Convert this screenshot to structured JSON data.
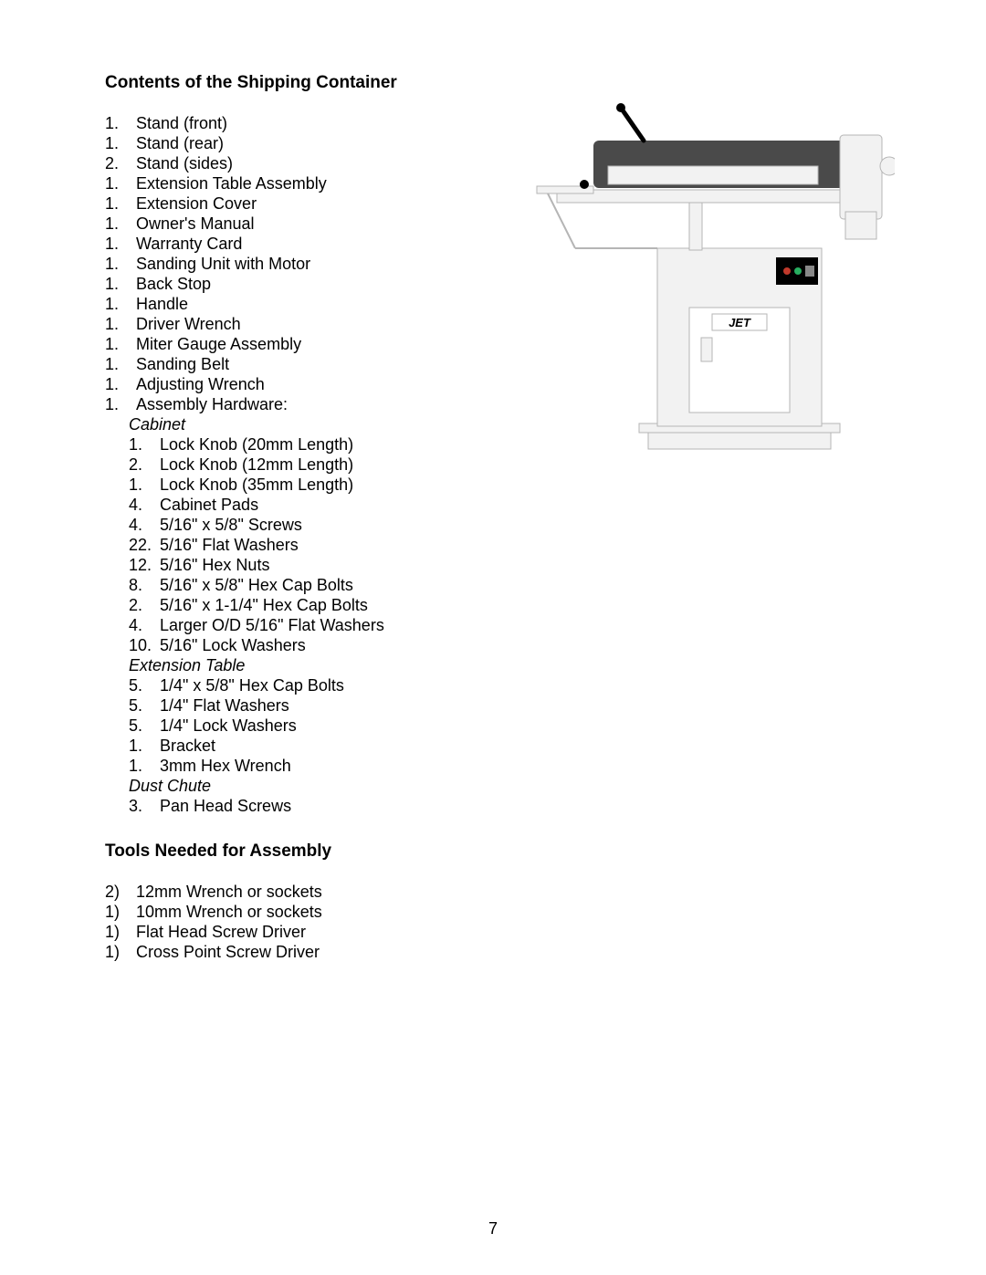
{
  "headings": {
    "contents": "Contents of the Shipping Container",
    "tools": "Tools Needed for Assembly"
  },
  "main_list": [
    {
      "n": "1.",
      "t": "Stand (front)"
    },
    {
      "n": "1.",
      "t": "Stand (rear)"
    },
    {
      "n": "2.",
      "t": "Stand (sides)"
    },
    {
      "n": "1.",
      "t": "Extension Table Assembly"
    },
    {
      "n": "1.",
      "t": "Extension Cover"
    },
    {
      "n": "1.",
      "t": "Owner's Manual"
    },
    {
      "n": "1.",
      "t": "Warranty Card"
    },
    {
      "n": "1.",
      "t": "Sanding Unit with Motor"
    },
    {
      "n": "1.",
      "t": "Back Stop"
    },
    {
      "n": "1.",
      "t": "Handle"
    },
    {
      "n": "1.",
      "t": "Driver Wrench"
    },
    {
      "n": "1.",
      "t": "Miter Gauge Assembly"
    },
    {
      "n": "1.",
      "t": "Sanding Belt"
    },
    {
      "n": "1.",
      "t": "Adjusting Wrench"
    },
    {
      "n": "1.",
      "t": "Assembly Hardware:"
    }
  ],
  "sub_headings": {
    "cabinet": "Cabinet",
    "ext_table": "Extension Table",
    "dust_chute": "Dust Chute"
  },
  "cabinet_list": [
    {
      "n": "1.",
      "t": "Lock Knob (20mm Length)"
    },
    {
      "n": "2.",
      "t": "Lock Knob (12mm Length)"
    },
    {
      "n": "1.",
      "t": "Lock Knob (35mm Length)"
    },
    {
      "n": "4.",
      "t": "Cabinet Pads"
    },
    {
      "n": "4.",
      "t": "5/16\" x 5/8\" Screws"
    },
    {
      "n": "22.",
      "t": "5/16\" Flat Washers"
    },
    {
      "n": "12.",
      "t": "5/16\" Hex Nuts"
    },
    {
      "n": "8.",
      "t": "5/16\" x 5/8\" Hex Cap Bolts"
    },
    {
      "n": "2.",
      "t": "5/16\" x 1-1/4\" Hex Cap Bolts"
    },
    {
      "n": "4.",
      "t": "Larger O/D 5/16\" Flat Washers"
    },
    {
      "n": "10.",
      "t": "5/16\" Lock Washers"
    }
  ],
  "ext_table_list": [
    {
      "n": "5.",
      "t": "1/4\" x 5/8\" Hex Cap Bolts"
    },
    {
      "n": "5.",
      "t": "1/4\" Flat Washers"
    },
    {
      "n": "5.",
      "t": "1/4\" Lock Washers"
    },
    {
      "n": "1.",
      "t": "Bracket"
    },
    {
      "n": "1.",
      "t": "3mm Hex Wrench"
    }
  ],
  "dust_chute_list": [
    {
      "n": "3.",
      "t": "Pan Head Screws"
    }
  ],
  "tools_list": [
    {
      "n": "2)",
      "t": "12mm Wrench or sockets"
    },
    {
      "n": "1)",
      "t": "10mm Wrench or sockets"
    },
    {
      "n": "1)",
      "t": "Flat Head Screw Driver"
    },
    {
      "n": "1)",
      "t": "Cross Point Screw Driver"
    }
  ],
  "page_number": "7",
  "figure": {
    "background": "#ffffff",
    "body_fill": "#f2f2f2",
    "body_stroke": "#b5b5b5",
    "dark_fill": "#4a4a4a",
    "black": "#000000",
    "logo_text": "JET"
  }
}
